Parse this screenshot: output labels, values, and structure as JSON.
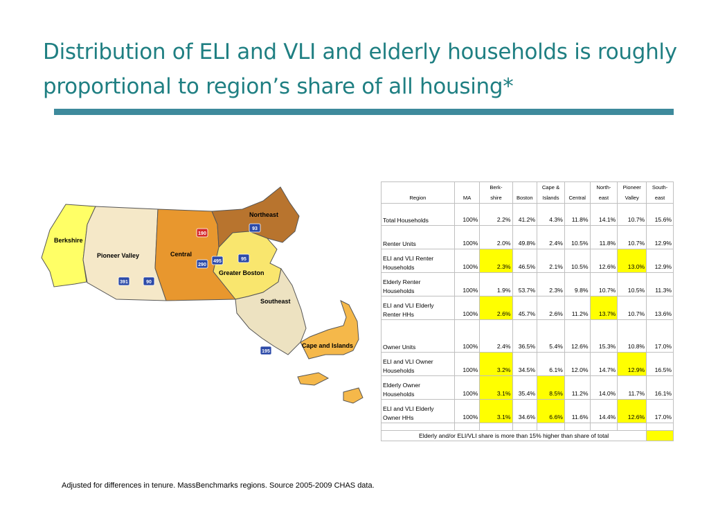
{
  "slide": {
    "title": "Distribution of ELI and VLI and elderly households is roughly proportional to region’s share of all housing*",
    "footnote": "Adjusted for differences in tenure.  MassBenchmarks regions.  Source 2005-2009 CHAS data."
  },
  "map": {
    "regions": [
      "Berkshire",
      "Pioneer Valley",
      "Central",
      "Northeast",
      "Greater Boston",
      "Southeast",
      "Cape and Islands"
    ],
    "highways": [
      "190",
      "93",
      "290",
      "495",
      "95",
      "391",
      "90",
      "195"
    ],
    "colors": {
      "berkshire": "#ffff66",
      "pioneer_valley": "#f5e8c8",
      "central": "#e8972e",
      "northeast": "#b8742e",
      "greater_boston": "#f9e66e",
      "southeast": "#ede2c1",
      "cape_and_islands": "#f5b84a"
    }
  },
  "table": {
    "header": {
      "region": "Region",
      "ma": "MA",
      "berkshire": [
        "Berk-",
        "shire"
      ],
      "boston": "Boston",
      "cape": [
        "Cape &",
        "Islands"
      ],
      "central": "Central",
      "northeast": [
        "North-",
        "east"
      ],
      "pioneer": [
        "Pioneer",
        "Valley"
      ],
      "southeast": [
        "South-",
        "east"
      ]
    },
    "rows": [
      {
        "label": [
          "Total Households"
        ],
        "values": [
          "100%",
          "2.2%",
          "41.2%",
          "4.3%",
          "11.8%",
          "14.1%",
          "10.7%",
          "15.6%"
        ]
      },
      {
        "label": [
          "Renter Units"
        ],
        "values": [
          "100%",
          "2.0%",
          "49.8%",
          "2.4%",
          "10.5%",
          "11.8%",
          "10.7%",
          "12.9%"
        ]
      },
      {
        "label": [
          "ELI and VLI Renter",
          "Households"
        ],
        "values": [
          "100%",
          "2.3%",
          "46.5%",
          "2.1%",
          "10.5%",
          "12.6%",
          "13.0%",
          "12.9%"
        ]
      },
      {
        "label": [
          "Elderly Renter",
          "Households"
        ],
        "values": [
          "100%",
          "1.9%",
          "53.7%",
          "2.3%",
          "9.8%",
          "10.7%",
          "10.5%",
          "11.3%"
        ]
      },
      {
        "label": [
          "ELI and VLI Elderly",
          "Renter HHs"
        ],
        "values": [
          "100%",
          "2.6%",
          "45.7%",
          "2.6%",
          "11.2%",
          "13.7%",
          "10.7%",
          "13.6%"
        ]
      },
      {
        "label": [
          "Owner Units"
        ],
        "values": [
          "100%",
          "2.4%",
          "36.5%",
          "5.4%",
          "12.6%",
          "15.3%",
          "10.8%",
          "17.0%"
        ]
      },
      {
        "label": [
          "ELI and VLI Owner",
          "Households"
        ],
        "values": [
          "100%",
          "3.2%",
          "34.5%",
          "6.1%",
          "12.0%",
          "14.7%",
          "12.9%",
          "16.5%"
        ]
      },
      {
        "label": [
          "Elderly Owner",
          "Households"
        ],
        "values": [
          "100%",
          "3.1%",
          "35.4%",
          "8.5%",
          "11.2%",
          "14.0%",
          "11.7%",
          "16.1%"
        ]
      },
      {
        "label": [
          "ELI and VLI Elderly",
          "Owner HHs"
        ],
        "values": [
          "100%",
          "3.1%",
          "34.6%",
          "6.6%",
          "11.6%",
          "14.4%",
          "12.6%",
          "17.0%"
        ]
      }
    ],
    "legend": "Elderly and/or ELI/VLI share is more than 15% higher than share of total",
    "highlight_color": "#ffff00"
  }
}
